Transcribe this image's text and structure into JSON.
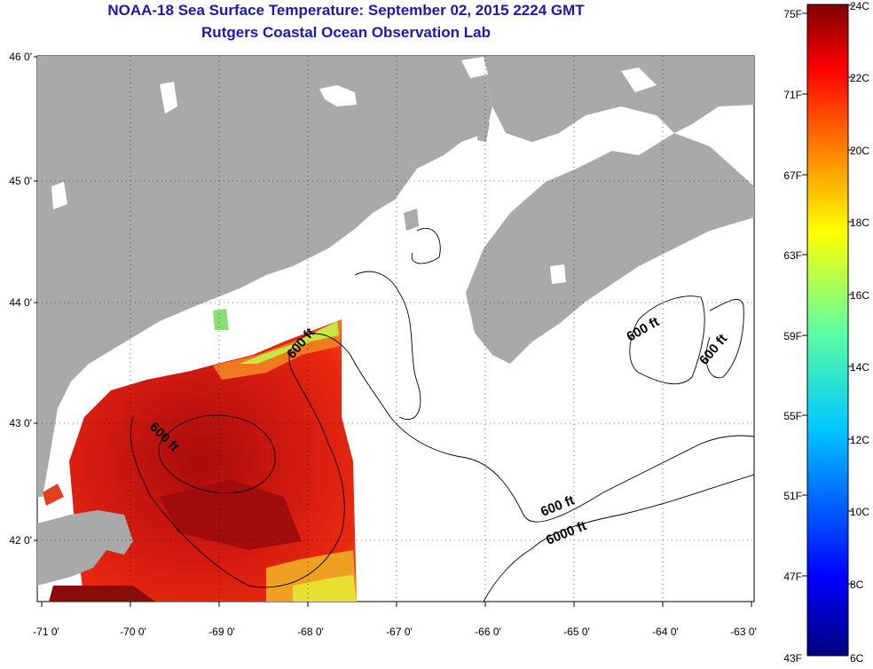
{
  "title": {
    "line1": "NOAA-18 Sea Surface Temperature:  September 02, 2015 2224 GMT",
    "line2": "Rutgers Coastal Ocean Observation Lab"
  },
  "axes": {
    "lat_labels": [
      "46 0'",
      "45 0'",
      "44 0'",
      "43 0'",
      "42 0'"
    ],
    "lon_labels": [
      "-71 0'",
      "-70 0'",
      "-69 0'",
      "-68 0'",
      "-67 0'",
      "-66 0'",
      "-65 0'",
      "-64 0'",
      "-63 0'"
    ]
  },
  "contours": [
    {
      "label": "600 ft"
    },
    {
      "label": "600 ft"
    },
    {
      "label": "600 ft"
    },
    {
      "label": "600 ft"
    },
    {
      "label": "600 ft"
    },
    {
      "label": "6000 ft"
    }
  ],
  "colorbar": {
    "fahrenheit": [
      "75F",
      "71F",
      "67F",
      "63F",
      "59F",
      "55F",
      "51F",
      "47F",
      "43F"
    ],
    "celsius": [
      "24C",
      "22C",
      "20C",
      "18C",
      "16C",
      "14C",
      "12C",
      "10C",
      "8C",
      "6C"
    ]
  },
  "colors": {
    "land": "#a9a9a9",
    "title": "#1a1ab0",
    "sst_warm": "#c21010",
    "sst_hot": "#8a0b0b"
  }
}
